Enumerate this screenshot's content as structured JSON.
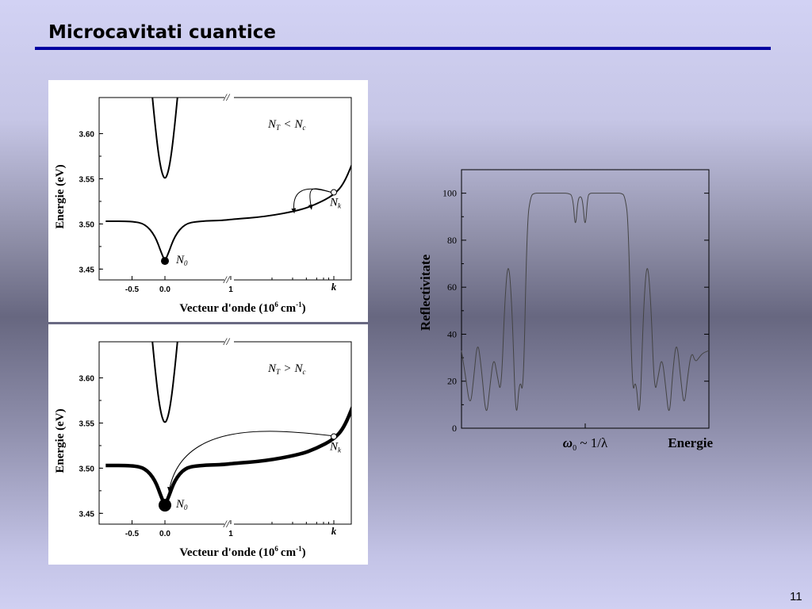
{
  "slide": {
    "title": "Microcavitati cuantice",
    "page_number": "11"
  },
  "chart_data": [
    {
      "type": "line",
      "panel": "top",
      "annotation": "N_T < N_c",
      "xlabel": "Vecteur d'onde (10^6 cm^-1)",
      "ylabel": "Energie (eV)",
      "x_tick_labels": [
        "-0.5",
        "0.0",
        "1",
        "k"
      ],
      "y_ticks": [
        3.45,
        3.5,
        3.55,
        3.6
      ],
      "y_tick_labels": [
        "3.45",
        "3.50",
        "3.55",
        "3.60"
      ],
      "ylim": [
        3.438,
        3.64
      ],
      "axis_break": "//",
      "series": [
        {
          "role": "upper-branch",
          "x": [
            -0.19,
            -0.15,
            -0.1,
            -0.05,
            0.0,
            0.05,
            0.1,
            0.15,
            0.19
          ],
          "y": [
            3.64,
            3.61,
            3.578,
            3.557,
            3.549,
            3.557,
            3.578,
            3.61,
            3.64
          ]
        },
        {
          "role": "lower-branch",
          "x": [
            -0.9,
            -0.5,
            -0.3,
            -0.15,
            -0.05,
            0.0,
            0.05,
            0.15,
            0.3,
            0.5,
            0.9,
            1.0,
            2.0,
            3.0,
            3.5,
            4.0,
            4.3,
            4.6
          ],
          "y": [
            3.503,
            3.503,
            3.5,
            3.487,
            3.467,
            3.459,
            3.467,
            3.487,
            3.5,
            3.503,
            3.504,
            3.505,
            3.508,
            3.515,
            3.522,
            3.532,
            3.545,
            3.573
          ]
        }
      ],
      "points": [
        {
          "label": "N_0",
          "x": 0.0,
          "y": 3.459,
          "style": "filled-small"
        },
        {
          "label": "N_k",
          "x": 4.0,
          "y": 3.535,
          "style": "open"
        }
      ],
      "arrows": [
        {
          "from": "N_k",
          "to": [
            3.35,
            3.516
          ]
        },
        {
          "from": "N_k",
          "to": [
            2.85,
            3.512
          ]
        }
      ]
    },
    {
      "type": "line",
      "panel": "bottom",
      "annotation": "N_T > N_c",
      "xlabel": "Vecteur d'onde (10^6 cm^-1)",
      "ylabel": "Energie (eV)",
      "x_tick_labels": [
        "-0.5",
        "0.0",
        "1",
        "k"
      ],
      "y_ticks": [
        3.45,
        3.5,
        3.55,
        3.6
      ],
      "y_tick_labels": [
        "3.45",
        "3.50",
        "3.55",
        "3.60"
      ],
      "ylim": [
        3.438,
        3.64
      ],
      "axis_break": "//",
      "series": [
        {
          "role": "upper-branch",
          "x": [
            -0.19,
            -0.15,
            -0.1,
            -0.05,
            0.0,
            0.05,
            0.1,
            0.15,
            0.19
          ],
          "y": [
            3.64,
            3.61,
            3.578,
            3.557,
            3.549,
            3.557,
            3.578,
            3.61,
            3.64
          ]
        },
        {
          "role": "lower-branch",
          "x": [
            -0.9,
            -0.5,
            -0.3,
            -0.15,
            -0.05,
            0.0,
            0.05,
            0.15,
            0.3,
            0.5,
            0.9,
            1.0,
            2.0,
            3.0,
            3.5,
            4.0,
            4.3,
            4.6
          ],
          "y": [
            3.503,
            3.503,
            3.5,
            3.487,
            3.467,
            3.459,
            3.467,
            3.487,
            3.5,
            3.503,
            3.504,
            3.505,
            3.508,
            3.515,
            3.522,
            3.532,
            3.545,
            3.573
          ]
        }
      ],
      "points": [
        {
          "label": "N_0",
          "x": 0.0,
          "y": 3.459,
          "style": "filled-large"
        },
        {
          "label": "N_k",
          "x": 4.0,
          "y": 3.535,
          "style": "open"
        }
      ],
      "arrows": [
        {
          "from": "N_k",
          "to": [
            0.0,
            3.465
          ]
        }
      ]
    },
    {
      "type": "line",
      "panel": "right",
      "ylabel": "Reflectivitate",
      "xlabel": "Energie",
      "x_marker_label": "ω0 ~ 1/λ",
      "xlim": [
        0,
        100
      ],
      "ylim": [
        0,
        110
      ],
      "y_ticks": [
        0,
        20,
        40,
        60,
        80,
        100
      ],
      "y_tick_labels": [
        "0",
        "20",
        "40",
        "60",
        "80",
        "100"
      ],
      "x_marker": 50,
      "series": [
        {
          "name": "",
          "x": [
            0,
            1.5,
            3.5,
            5,
            6.5,
            8,
            10,
            11.5,
            13,
            14.5,
            16,
            17.5,
            19,
            20.5,
            22,
            23.5,
            25,
            26.5,
            28,
            29.5,
            31,
            32.5,
            34,
            35.5,
            37,
            39,
            41,
            43,
            45,
            46,
            47,
            48,
            49,
            50,
            51,
            52,
            53,
            54,
            55,
            57,
            59,
            61,
            63,
            64.5,
            66,
            67.5,
            69,
            70.5,
            72,
            73.5,
            75,
            76.5,
            78,
            79.5,
            81,
            82.5,
            84,
            85.5,
            87,
            88.5,
            90,
            91.5,
            93,
            94.5,
            96,
            97.5,
            100
          ],
          "y": [
            33,
            23,
            8,
            22,
            38,
            26,
            3,
            18,
            31,
            22,
            14,
            55,
            73,
            50,
            0,
            22,
            13,
            88,
            99,
            100,
            100,
            100,
            100,
            100,
            100,
            100,
            100,
            100,
            99,
            84,
            97,
            99,
            97,
            84,
            99,
            100,
            100,
            100,
            100,
            100,
            100,
            100,
            100,
            100,
            99,
            88,
            13,
            22,
            0,
            50,
            73,
            55,
            14,
            22,
            31,
            18,
            3,
            26,
            38,
            22,
            8,
            23,
            33,
            28,
            30,
            32,
            33
          ]
        }
      ]
    }
  ]
}
